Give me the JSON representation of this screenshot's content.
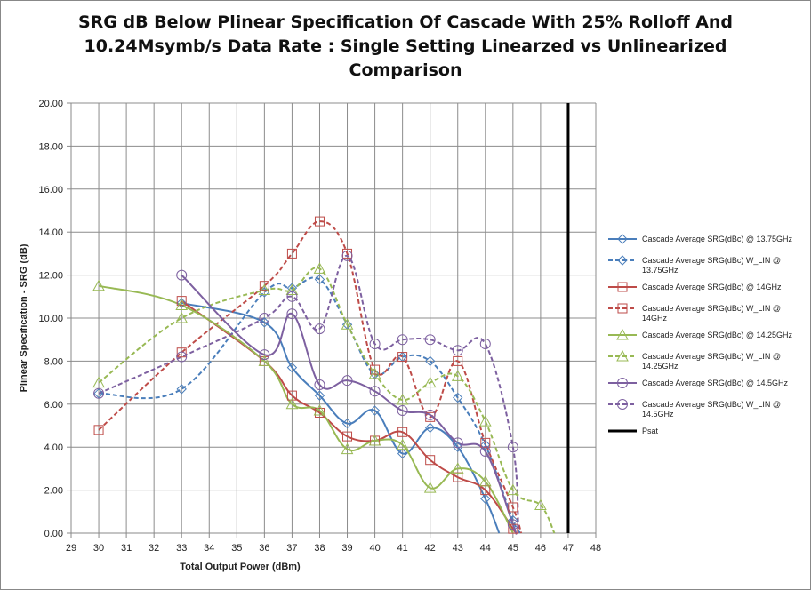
{
  "chart_data": {
    "type": "line",
    "title_lines": [
      "SRG dB Below Plinear Specification Of Cascade With 25% Rolloff And",
      "10.24Msymb/s Data Rate : Single Setting Linearzed vs Unlinearized",
      "Comparison"
    ],
    "xlabel": "Total Output Power (dBm)",
    "ylabel": "Plinear Specification - SRG (dB)",
    "xlim": [
      29,
      48
    ],
    "ylim": [
      0,
      20
    ],
    "x_ticks": [
      "29",
      "30",
      "31",
      "32",
      "33",
      "34",
      "35",
      "36",
      "37",
      "38",
      "39",
      "40",
      "41",
      "42",
      "43",
      "44",
      "45",
      "46",
      "47",
      "48"
    ],
    "y_ticks": [
      "0.00",
      "2.00",
      "4.00",
      "6.00",
      "8.00",
      "10.00",
      "12.00",
      "14.00",
      "16.00",
      "18.00",
      "20.00"
    ],
    "grid": true,
    "legend_position": "right",
    "series": [
      {
        "name": "Cascade Average SRG(dBc) @ 13.75GHz",
        "color": "#4a7ebb",
        "dash": false,
        "marker": "diamond",
        "points": [
          [
            33,
            10.7
          ],
          [
            36,
            9.8
          ],
          [
            37,
            7.7
          ],
          [
            38,
            6.4
          ],
          [
            39,
            5.1
          ],
          [
            40,
            5.7
          ],
          [
            41,
            3.7
          ],
          [
            42,
            4.9
          ],
          [
            43,
            4.0
          ],
          [
            44,
            1.6
          ],
          [
            44.5,
            0
          ]
        ]
      },
      {
        "name": "Cascade Average SRG(dBc) W_LIN @ 13.75GHz",
        "color": "#4a7ebb",
        "dash": true,
        "marker": "diamond",
        "points": [
          [
            30,
            6.5
          ],
          [
            33,
            6.7
          ],
          [
            36,
            11.2
          ],
          [
            37,
            11.4
          ],
          [
            38,
            11.8
          ],
          [
            39,
            9.7
          ],
          [
            40,
            7.4
          ],
          [
            41,
            8.2
          ],
          [
            42,
            8.0
          ],
          [
            43,
            6.3
          ],
          [
            44,
            4.1
          ],
          [
            45,
            0.6
          ],
          [
            45.3,
            0
          ]
        ]
      },
      {
        "name": "Cascade Average SRG(dBc) @ 14GHz",
        "color": "#be4b48",
        "dash": false,
        "marker": "square",
        "points": [
          [
            33,
            10.8
          ],
          [
            36,
            8.0
          ],
          [
            37,
            6.4
          ],
          [
            38,
            5.6
          ],
          [
            39,
            4.5
          ],
          [
            40,
            4.3
          ],
          [
            41,
            4.7
          ],
          [
            42,
            3.4
          ],
          [
            43,
            2.6
          ],
          [
            44,
            2.0
          ],
          [
            45,
            0.2
          ],
          [
            45.1,
            0
          ]
        ]
      },
      {
        "name": "Cascade Average SRG(dBc) W_LIN @ 14GHz",
        "color": "#be4b48",
        "dash": true,
        "marker": "square",
        "points": [
          [
            30,
            4.8
          ],
          [
            33,
            8.4
          ],
          [
            36,
            11.5
          ],
          [
            37,
            13.0
          ],
          [
            38,
            14.5
          ],
          [
            39,
            13.0
          ],
          [
            40,
            7.6
          ],
          [
            41,
            8.2
          ],
          [
            42,
            5.4
          ],
          [
            43,
            8.0
          ],
          [
            44,
            4.2
          ],
          [
            45,
            1.2
          ],
          [
            45.3,
            0
          ]
        ]
      },
      {
        "name": "Cascade Average SRG(dBc) @ 14.25GHz",
        "color": "#98b954",
        "dash": false,
        "marker": "triangle",
        "points": [
          [
            30,
            11.5
          ],
          [
            33,
            10.6
          ],
          [
            36,
            8.0
          ],
          [
            37,
            6.0
          ],
          [
            38,
            5.7
          ],
          [
            39,
            3.9
          ],
          [
            40,
            4.3
          ],
          [
            41,
            4.1
          ],
          [
            42,
            2.1
          ],
          [
            43,
            3.0
          ],
          [
            44,
            2.4
          ],
          [
            45,
            0.0
          ]
        ]
      },
      {
        "name": "Cascade Average SRG(dBc) W_LIN @ 14.25GHz",
        "color": "#98b954",
        "dash": true,
        "marker": "triangle",
        "points": [
          [
            30,
            7.0
          ],
          [
            33,
            10.0
          ],
          [
            36,
            11.3
          ],
          [
            37,
            11.3
          ],
          [
            38,
            12.3
          ],
          [
            39,
            9.7
          ],
          [
            40,
            7.4
          ],
          [
            41,
            6.2
          ],
          [
            42,
            7.0
          ],
          [
            43,
            7.3
          ],
          [
            44,
            5.2
          ],
          [
            45,
            2.0
          ],
          [
            46,
            1.3
          ],
          [
            46.5,
            0
          ]
        ]
      },
      {
        "name": "Cascade Average SRG(dBc) @ 14.5GHz",
        "color": "#7d60a0",
        "dash": false,
        "marker": "circle",
        "points": [
          [
            33,
            12.0
          ],
          [
            36,
            8.3
          ],
          [
            37,
            10.2
          ],
          [
            38,
            6.9
          ],
          [
            39,
            7.1
          ],
          [
            40,
            6.6
          ],
          [
            41,
            5.7
          ],
          [
            42,
            5.5
          ],
          [
            43,
            4.2
          ],
          [
            44,
            3.8
          ],
          [
            45,
            0.4
          ],
          [
            45.1,
            0
          ]
        ]
      },
      {
        "name": "Cascade Average SRG(dBc) W_LIN @ 14.5GHz",
        "color": "#7d60a0",
        "dash": true,
        "marker": "circle",
        "points": [
          [
            30,
            6.5
          ],
          [
            33,
            8.2
          ],
          [
            36,
            10.0
          ],
          [
            37,
            11.0
          ],
          [
            38,
            9.5
          ],
          [
            39,
            12.9
          ],
          [
            40,
            8.8
          ],
          [
            41,
            9.0
          ],
          [
            42,
            9.0
          ],
          [
            43,
            8.5
          ],
          [
            44,
            8.8
          ],
          [
            45,
            4.0
          ],
          [
            45.2,
            0
          ]
        ]
      },
      {
        "name": "Psat",
        "color": "#000000",
        "dash": false,
        "marker": "none",
        "width": 3,
        "points": [
          [
            47,
            0
          ],
          [
            47,
            20
          ]
        ]
      }
    ]
  }
}
